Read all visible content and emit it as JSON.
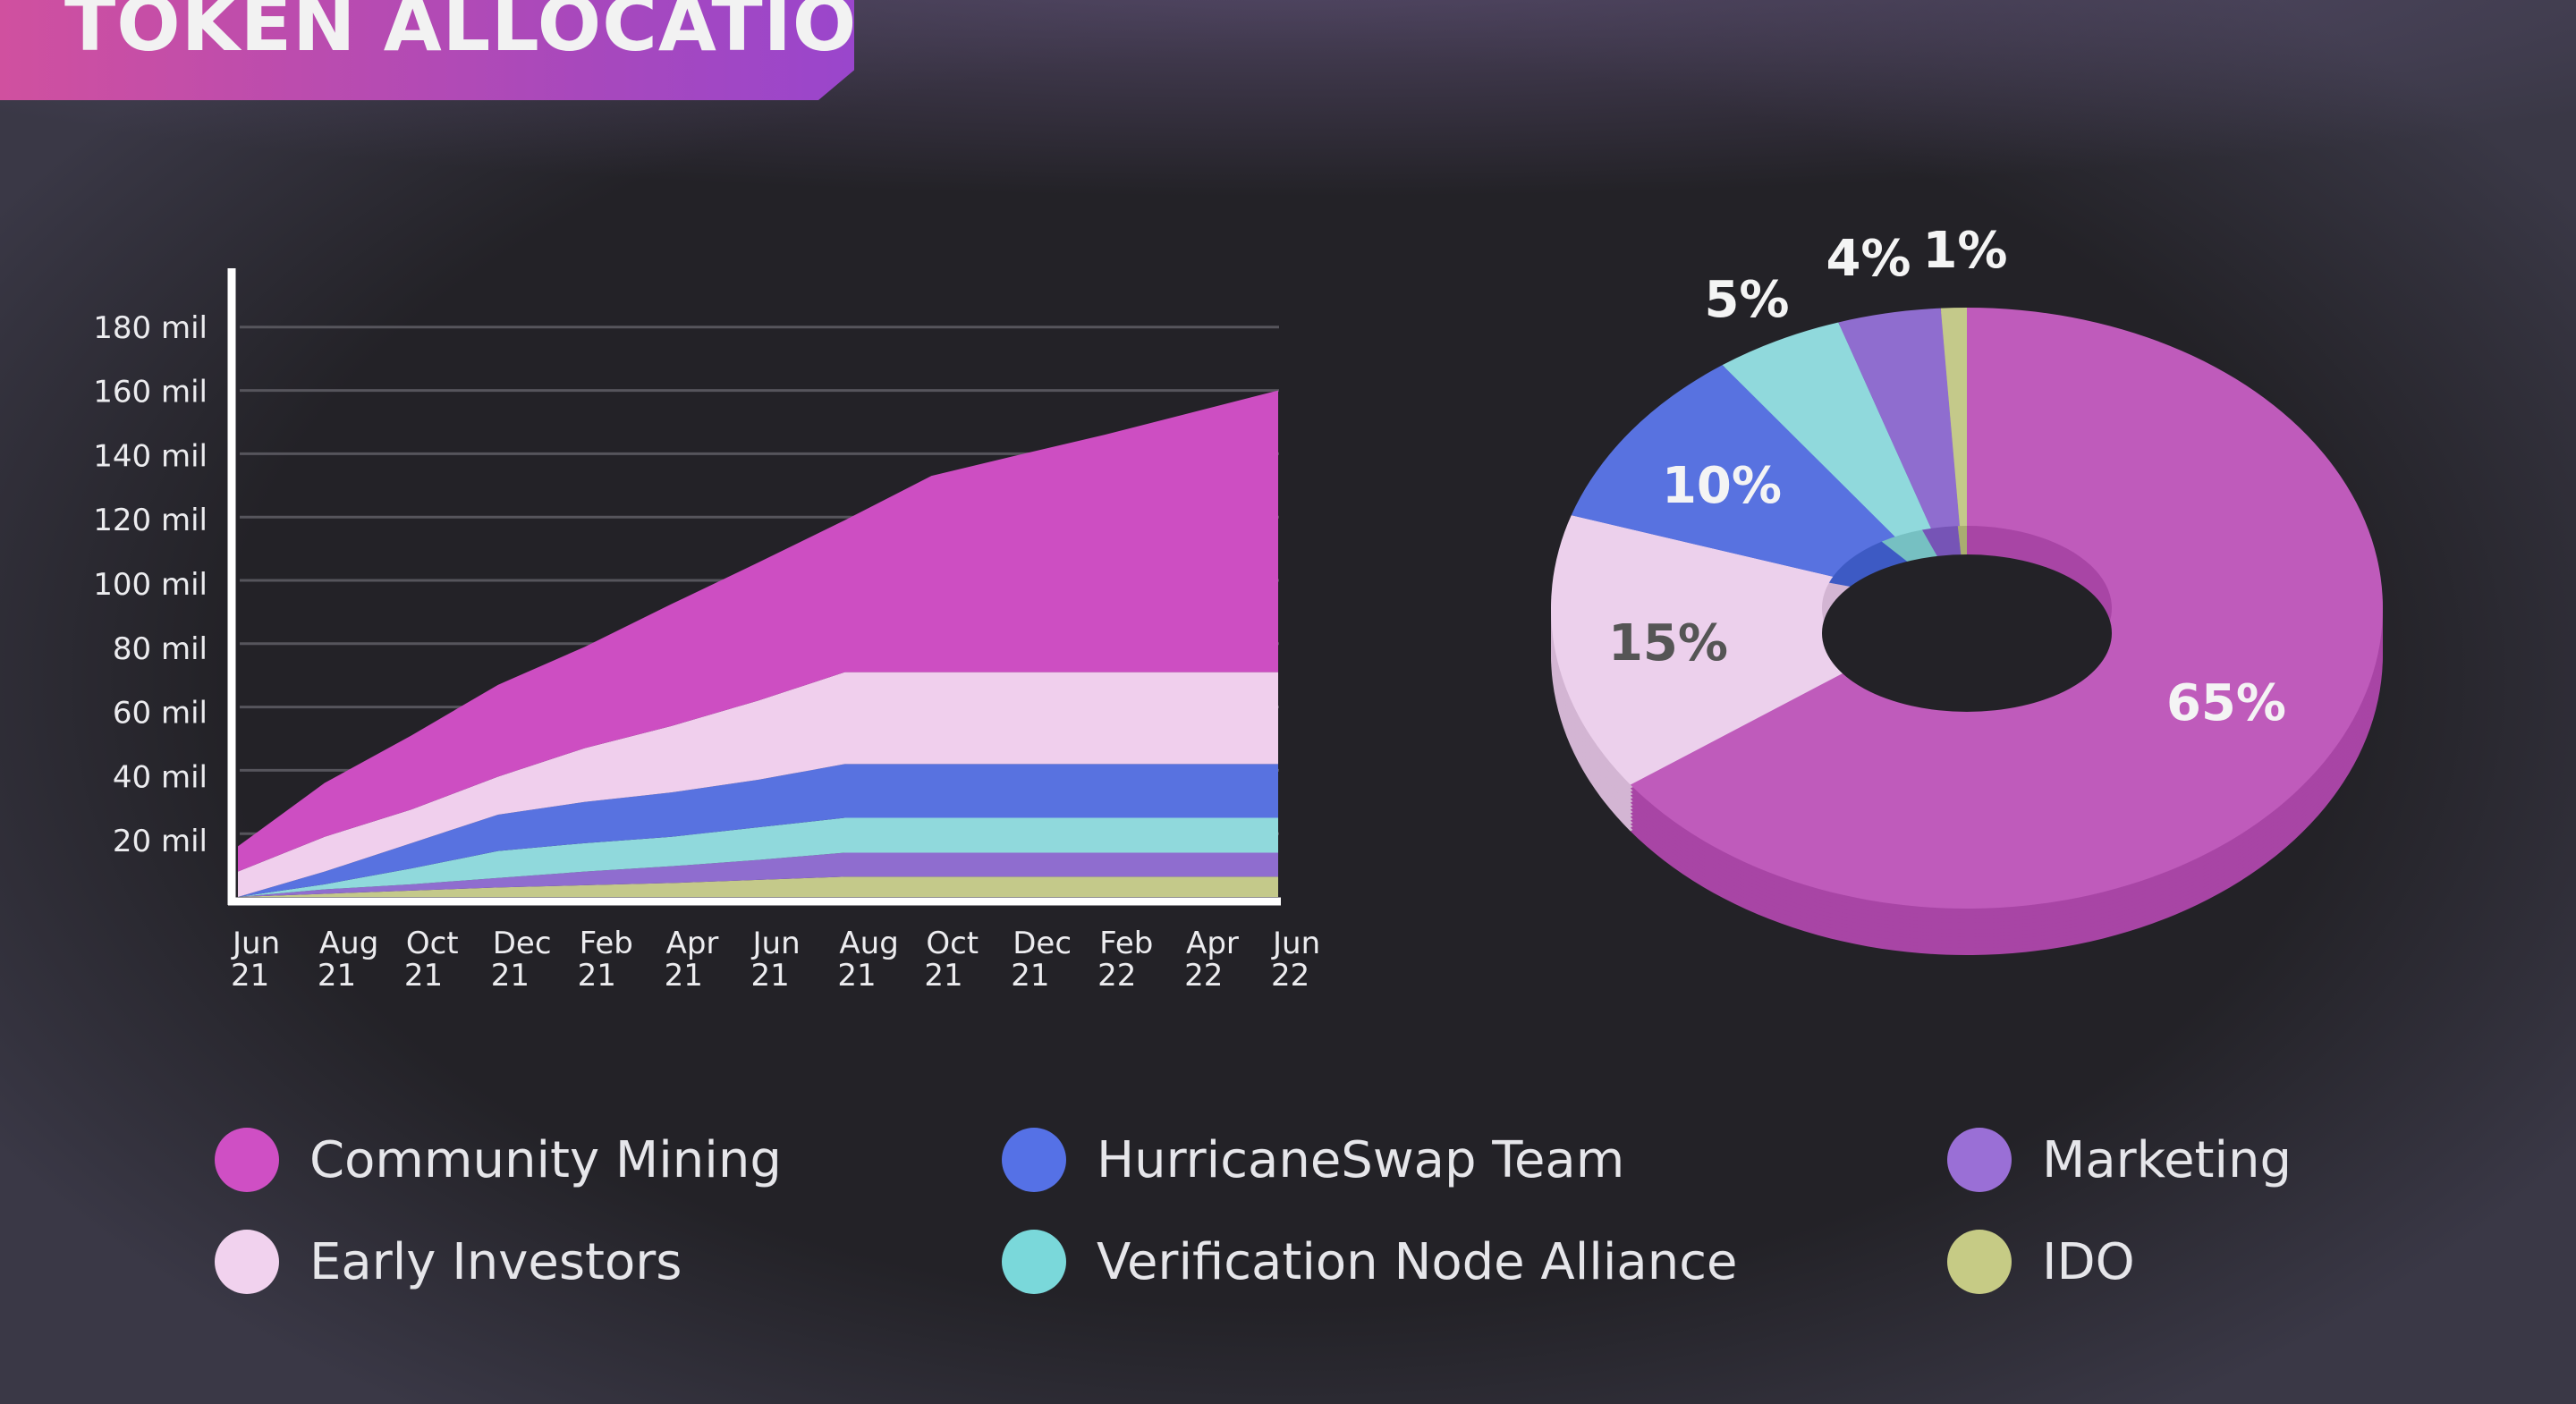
{
  "title": "TOKEN ALLOCATION",
  "chart_data": [
    {
      "type": "area",
      "stacked": true,
      "x": [
        "Jun 21",
        "Aug 21",
        "Oct 21",
        "Dec 21",
        "Feb 21",
        "Apr 21",
        "Jun 21",
        "Aug 21",
        "Oct 21",
        "Dec 21",
        "Feb 22",
        "Apr 22",
        "Jun 22"
      ],
      "x_tick_labels": [
        [
          "Jun",
          "21"
        ],
        [
          "Aug",
          "21"
        ],
        [
          "Oct",
          "21"
        ],
        [
          "Dec",
          "21"
        ],
        [
          "Feb",
          "21"
        ],
        [
          "Apr",
          "21"
        ],
        [
          "Jun",
          "21"
        ],
        [
          "Aug",
          "21"
        ],
        [
          "Oct",
          "21"
        ],
        [
          "Dec",
          "21"
        ],
        [
          "Feb",
          "22"
        ],
        [
          "Apr",
          "22"
        ],
        [
          "Jun",
          "22"
        ]
      ],
      "y_ticks": [
        20,
        40,
        60,
        80,
        100,
        120,
        140,
        160,
        180
      ],
      "y_tick_labels": [
        "20 mil",
        "40 mil",
        "60 mil",
        "80 mil",
        "100 mil",
        "120 mil",
        "140 mil",
        "160 mil",
        "180 mil"
      ],
      "ylim": [
        0,
        180
      ],
      "grid": true,
      "series": [
        {
          "name": "IDO",
          "color": "#c4c98a",
          "values": [
            0,
            1,
            2,
            3,
            3.7,
            4.4,
            5.4,
            6.4,
            6.4,
            6.4,
            6.4,
            6.4,
            6.4
          ]
        },
        {
          "name": "Marketing",
          "color": "#8f6dcf",
          "values": [
            0,
            1.4,
            2,
            3,
            4.3,
            5.3,
            6.3,
            7.6,
            7.6,
            7.6,
            7.6,
            7.6,
            7.6
          ]
        },
        {
          "name": "Verification Node Alliance",
          "color": "#90d9dc",
          "values": [
            0,
            1.6,
            5,
            8.5,
            9,
            9.3,
            10.3,
            11,
            11,
            11,
            11,
            11,
            11
          ]
        },
        {
          "name": "HurricaneSwap Team",
          "color": "#5872e0",
          "values": [
            0,
            4,
            8,
            11.5,
            13,
            14,
            15,
            17,
            17,
            17,
            17,
            17,
            17
          ]
        },
        {
          "name": "Early Investors",
          "color": "#f0cfed",
          "values": [
            8,
            11,
            10.6,
            12,
            17,
            21,
            25,
            29,
            29,
            29,
            29,
            29,
            29
          ]
        },
        {
          "name": "Community Mining",
          "color": "#cd4ec2",
          "values": [
            8,
            17,
            23.4,
            29,
            32,
            38.5,
            43.6,
            48,
            62,
            68.6,
            75,
            82,
            89
          ]
        }
      ]
    },
    {
      "type": "pie",
      "style": "3d-donut",
      "slices": [
        {
          "name": "Community Mining",
          "value": 65,
          "label": "65%",
          "color": "#bf5bbb",
          "side_color": "#a845a5",
          "label_color": "#f4f4f4"
        },
        {
          "name": "Early Investors",
          "value": 15,
          "label": "15%",
          "color": "#ecd0ec",
          "side_color": "#d3b5d3",
          "label_color": "#555555"
        },
        {
          "name": "HurricaneSwap Team",
          "value": 10,
          "label": "10%",
          "color": "#5872e0",
          "side_color": "#3d5ac4",
          "label_color": "#f4f4f4"
        },
        {
          "name": "Verification Node Alliance",
          "value": 5,
          "label": "5%",
          "color": "#90d9dc",
          "side_color": "#76c0c2",
          "label_color": "#f4f4f4"
        },
        {
          "name": "Marketing",
          "value": 4,
          "label": "4%",
          "color": "#8f6dcf",
          "side_color": "#7654b6",
          "label_color": "#f4f4f4"
        },
        {
          "name": "IDO",
          "value": 1,
          "label": "1%",
          "color": "#c4c98a",
          "side_color": "#a9ad70",
          "label_color": "#f4f4f4"
        }
      ]
    }
  ],
  "legend": [
    {
      "label": "Community Mining",
      "color": "#cf4fc4"
    },
    {
      "label": "Early Investors",
      "color": "#f1d2ee"
    },
    {
      "label": "HurricaneSwap Team",
      "color": "#5571e6"
    },
    {
      "label": "Verification Node Alliance",
      "color": "#7ad8da"
    },
    {
      "label": "Marketing",
      "color": "#9a6fd6"
    },
    {
      "label": "IDO",
      "color": "#c6cb85"
    }
  ]
}
